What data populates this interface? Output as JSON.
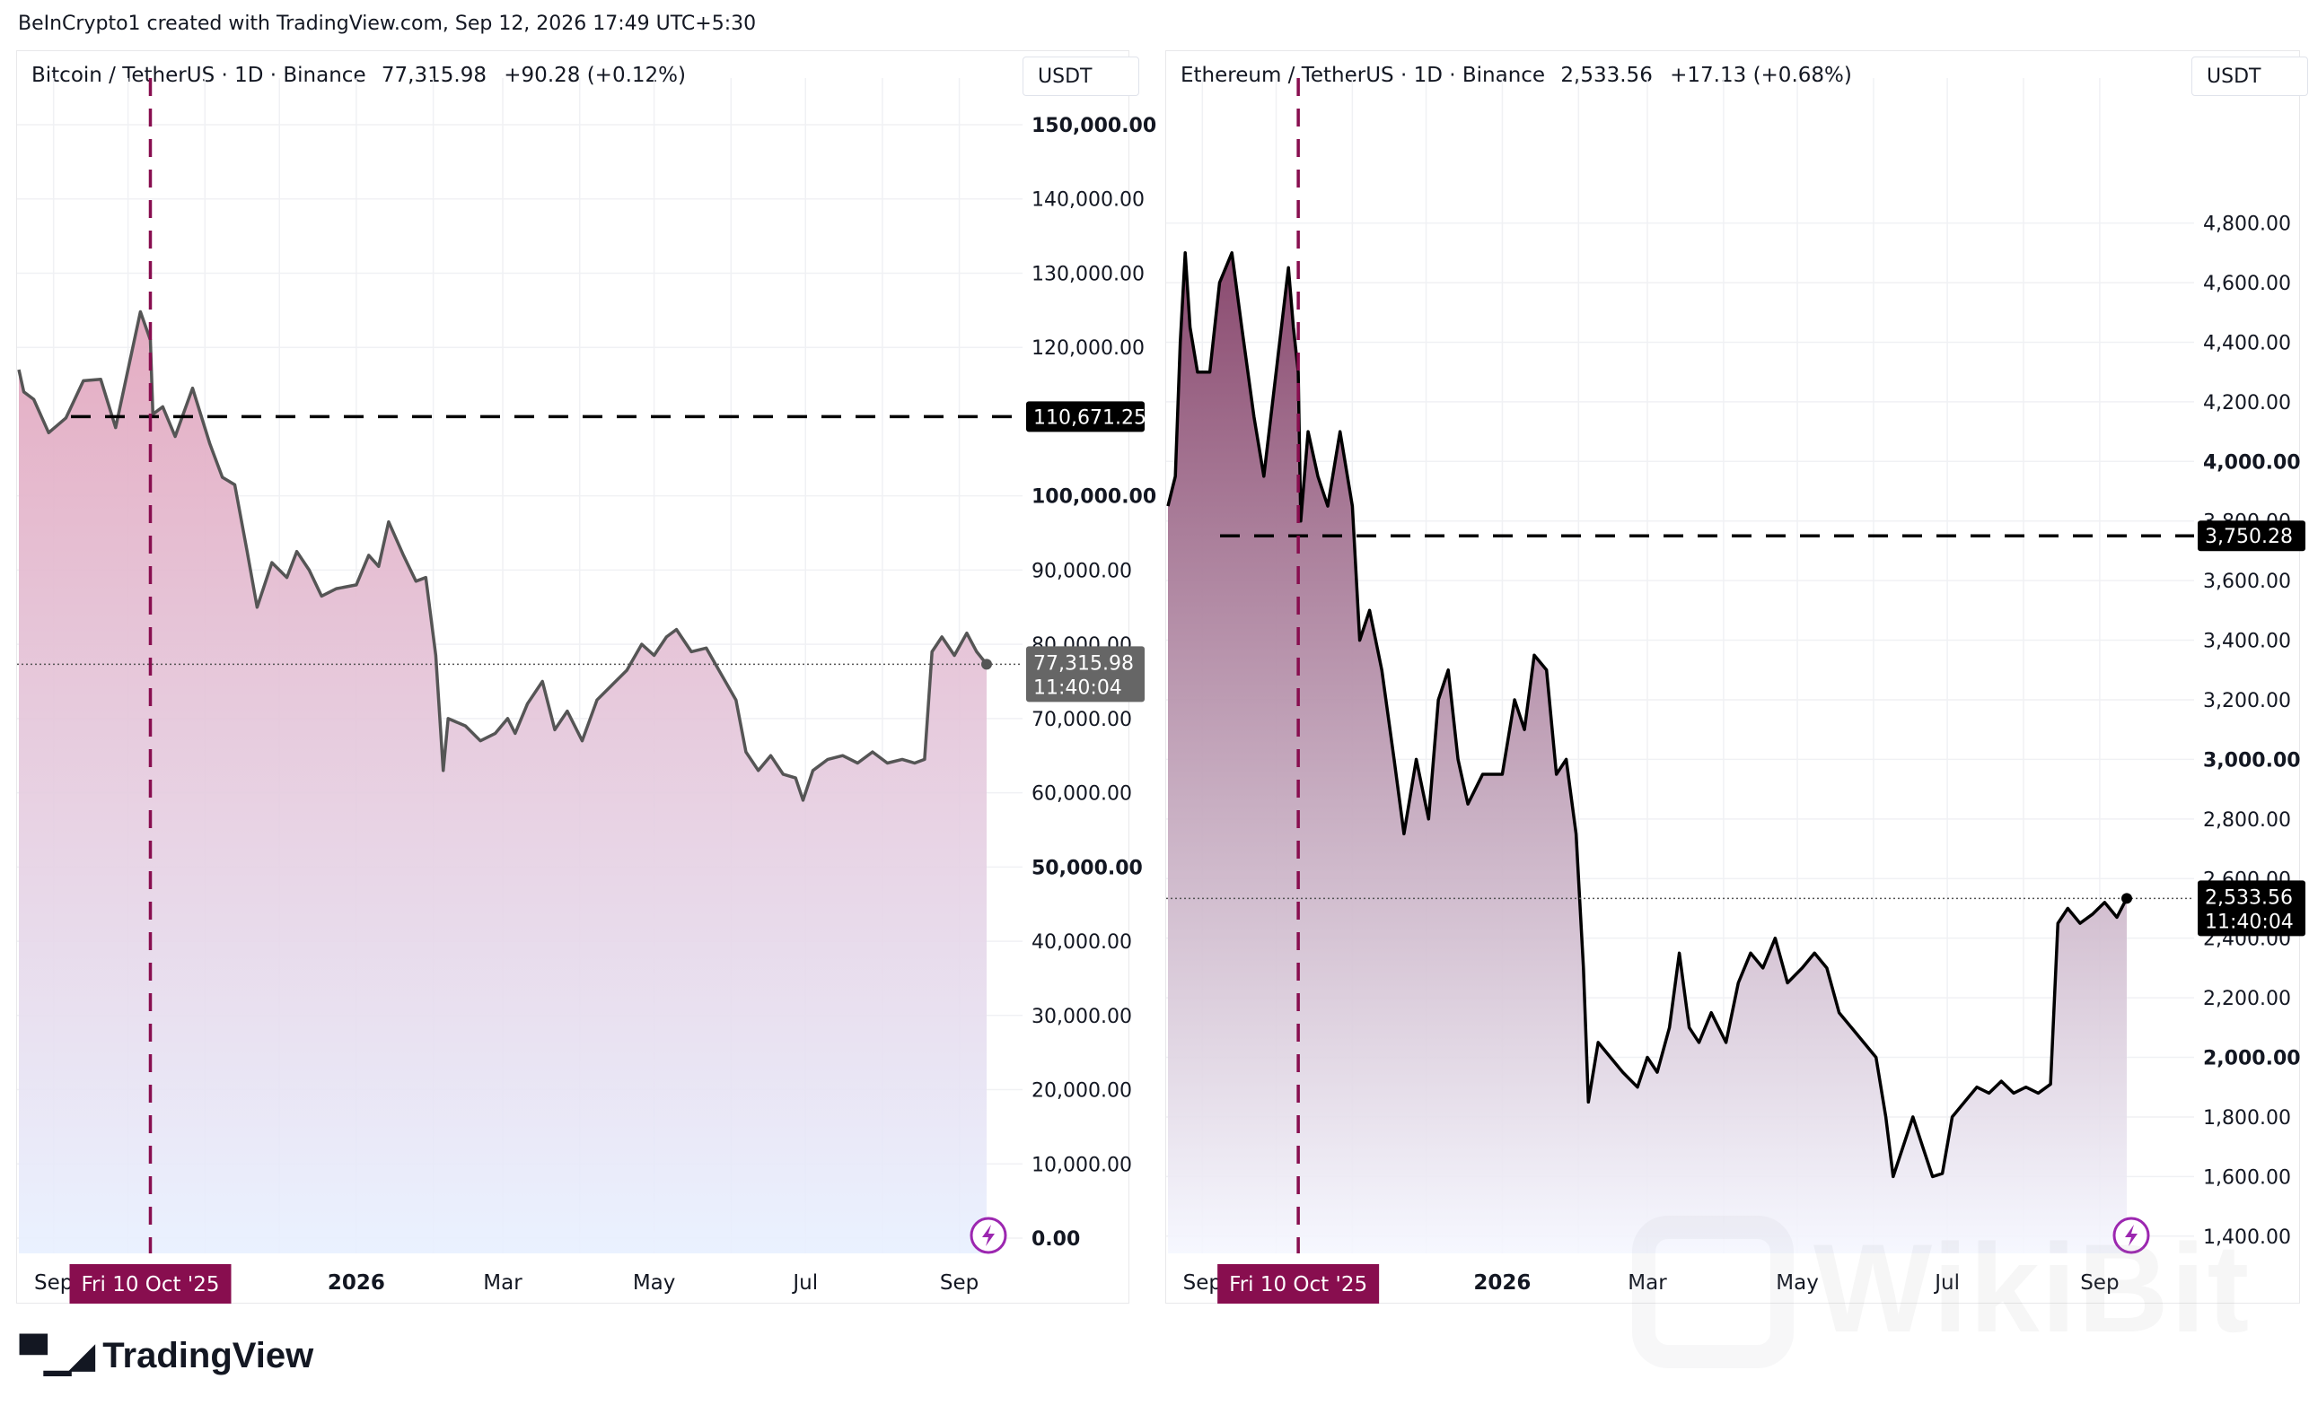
{
  "header": {
    "text": "BeInCrypto1 created with TradingView.com, Sep 12, 2026 17:49 UTC+5:30"
  },
  "footer": {
    "brand": "TradingView",
    "watermark": "WikiBit"
  },
  "colors": {
    "line": "#555555",
    "eth_line": "#000000",
    "positive": "#089981",
    "marker": "#880e4f",
    "label_bg": "#000000"
  },
  "chart_data": [
    {
      "type": "area",
      "symbol": "Bitcoin / TetherUS · 1D · Binance",
      "price": "77,315.98",
      "change": "+90.28 (+0.12%)",
      "currency": "USDT",
      "y_ticks": [
        "150,000.00",
        "140,000.00",
        "130,000.00",
        "120,000.00",
        "100,000.00",
        "90,000.00",
        "80,000.00",
        "70,000.00",
        "60,000.00",
        "50,000.00",
        "40,000.00",
        "30,000.00",
        "20,000.00",
        "10,000.00",
        "0.00"
      ],
      "bold_ticks": [
        "150,000.00",
        "100,000.00",
        "50,000.00",
        "0.00"
      ],
      "ylim": [
        0,
        150000
      ],
      "x_labels": [
        "Sep",
        "2026",
        "Mar",
        "May",
        "Jul",
        "Sep"
      ],
      "marker_label": "Fri 10 Oct '25",
      "level_value": 110671.25,
      "level_label": "110,671.25",
      "last_label": "77,315.98",
      "countdown": "11:40:04",
      "last_value": 77316,
      "series": [
        {
          "x": "2025-08-18",
          "y": 117000
        },
        {
          "x": "2025-08-20",
          "y": 114000
        },
        {
          "x": "2025-08-24",
          "y": 113000
        },
        {
          "x": "2025-08-30",
          "y": 108500
        },
        {
          "x": "2025-09-06",
          "y": 110500
        },
        {
          "x": "2025-09-13",
          "y": 115500
        },
        {
          "x": "2025-09-20",
          "y": 115700
        },
        {
          "x": "2025-09-26",
          "y": 109200
        },
        {
          "x": "2025-10-01",
          "y": 117000
        },
        {
          "x": "2025-10-06",
          "y": 124800
        },
        {
          "x": "2025-10-10",
          "y": 121000
        },
        {
          "x": "2025-10-11",
          "y": 111000
        },
        {
          "x": "2025-10-15",
          "y": 112000
        },
        {
          "x": "2025-10-20",
          "y": 108000
        },
        {
          "x": "2025-10-27",
          "y": 114500
        },
        {
          "x": "2025-11-03",
          "y": 107000
        },
        {
          "x": "2025-11-08",
          "y": 102500
        },
        {
          "x": "2025-11-13",
          "y": 101500
        },
        {
          "x": "2025-11-18",
          "y": 92500
        },
        {
          "x": "2025-11-22",
          "y": 85000
        },
        {
          "x": "2025-11-28",
          "y": 91000
        },
        {
          "x": "2025-12-04",
          "y": 89000
        },
        {
          "x": "2025-12-08",
          "y": 92500
        },
        {
          "x": "2025-12-13",
          "y": 90000
        },
        {
          "x": "2025-12-18",
          "y": 86500
        },
        {
          "x": "2025-12-24",
          "y": 87500
        },
        {
          "x": "2026-01-01",
          "y": 88000
        },
        {
          "x": "2026-01-06",
          "y": 92000
        },
        {
          "x": "2026-01-10",
          "y": 90500
        },
        {
          "x": "2026-01-14",
          "y": 96500
        },
        {
          "x": "2026-01-20",
          "y": 92000
        },
        {
          "x": "2026-01-25",
          "y": 88500
        },
        {
          "x": "2026-01-29",
          "y": 89000
        },
        {
          "x": "2026-02-02",
          "y": 78500
        },
        {
          "x": "2026-02-05",
          "y": 63000
        },
        {
          "x": "2026-02-07",
          "y": 70000
        },
        {
          "x": "2026-02-14",
          "y": 69000
        },
        {
          "x": "2026-02-20",
          "y": 67000
        },
        {
          "x": "2026-02-26",
          "y": 68000
        },
        {
          "x": "2026-03-03",
          "y": 70000
        },
        {
          "x": "2026-03-06",
          "y": 68000
        },
        {
          "x": "2026-03-11",
          "y": 72000
        },
        {
          "x": "2026-03-17",
          "y": 75000
        },
        {
          "x": "2026-03-22",
          "y": 68500
        },
        {
          "x": "2026-03-27",
          "y": 71000
        },
        {
          "x": "2026-04-02",
          "y": 67000
        },
        {
          "x": "2026-04-08",
          "y": 72500
        },
        {
          "x": "2026-04-14",
          "y": 74500
        },
        {
          "x": "2026-04-20",
          "y": 76500
        },
        {
          "x": "2026-04-26",
          "y": 80000
        },
        {
          "x": "2026-05-01",
          "y": 78500
        },
        {
          "x": "2026-05-06",
          "y": 81000
        },
        {
          "x": "2026-05-10",
          "y": 82000
        },
        {
          "x": "2026-05-16",
          "y": 79000
        },
        {
          "x": "2026-05-22",
          "y": 79500
        },
        {
          "x": "2026-05-28",
          "y": 76000
        },
        {
          "x": "2026-06-03",
          "y": 72500
        },
        {
          "x": "2026-06-07",
          "y": 65500
        },
        {
          "x": "2026-06-12",
          "y": 63000
        },
        {
          "x": "2026-06-17",
          "y": 65000
        },
        {
          "x": "2026-06-22",
          "y": 62500
        },
        {
          "x": "2026-06-27",
          "y": 62000
        },
        {
          "x": "2026-06-30",
          "y": 59000
        },
        {
          "x": "2026-07-04",
          "y": 63000
        },
        {
          "x": "2026-07-10",
          "y": 64500
        },
        {
          "x": "2026-07-16",
          "y": 65000
        },
        {
          "x": "2026-07-22",
          "y": 64000
        },
        {
          "x": "2026-07-28",
          "y": 65500
        },
        {
          "x": "2026-08-03",
          "y": 64000
        },
        {
          "x": "2026-08-09",
          "y": 64500
        },
        {
          "x": "2026-08-14",
          "y": 64000
        },
        {
          "x": "2026-08-18",
          "y": 64500
        },
        {
          "x": "2026-08-21",
          "y": 79000
        },
        {
          "x": "2026-08-25",
          "y": 81000
        },
        {
          "x": "2026-08-30",
          "y": 78500
        },
        {
          "x": "2026-09-04",
          "y": 81500
        },
        {
          "x": "2026-09-08",
          "y": 79000
        },
        {
          "x": "2026-09-12",
          "y": 77316
        }
      ],
      "gradient": [
        "#e3a8bf",
        "#e8f0ff"
      ]
    },
    {
      "type": "area",
      "symbol": "Ethereum / TetherUS · 1D · Binance",
      "price": "2,533.56",
      "change": "+17.13 (+0.68%)",
      "currency": "USDT",
      "y_ticks": [
        "4,800.00",
        "4,600.00",
        "4,400.00",
        "4,200.00",
        "4,000.00",
        "3,800.00",
        "3,600.00",
        "3,400.00",
        "3,200.00",
        "3,000.00",
        "2,800.00",
        "2,600.00",
        "2,400.00",
        "2,200.00",
        "2,000.00",
        "1,800.00",
        "1,600.00",
        "1,400.00"
      ],
      "bold_ticks": [
        "4,000.00",
        "3,000.00",
        "2,000.00"
      ],
      "ylim": [
        1300,
        5130
      ],
      "x_labels": [
        "Sep",
        "2026",
        "Mar",
        "May",
        "Jul",
        "Sep"
      ],
      "marker_label": "Fri 10 Oct '25",
      "level_value": 3750.28,
      "level_label": "3,750.28",
      "last_label": "2,533.56",
      "countdown": "11:40:04",
      "last_value": 2533.56,
      "series": [
        {
          "x": "2025-08-18",
          "y": 3850
        },
        {
          "x": "2025-08-21",
          "y": 3950
        },
        {
          "x": "2025-08-23",
          "y": 4400
        },
        {
          "x": "2025-08-25",
          "y": 4700
        },
        {
          "x": "2025-08-27",
          "y": 4450
        },
        {
          "x": "2025-08-30",
          "y": 4300
        },
        {
          "x": "2025-09-04",
          "y": 4300
        },
        {
          "x": "2025-09-08",
          "y": 4600
        },
        {
          "x": "2025-09-13",
          "y": 4700
        },
        {
          "x": "2025-09-17",
          "y": 4450
        },
        {
          "x": "2025-09-22",
          "y": 4150
        },
        {
          "x": "2025-09-26",
          "y": 3950
        },
        {
          "x": "2025-10-01",
          "y": 4300
        },
        {
          "x": "2025-10-06",
          "y": 4650
        },
        {
          "x": "2025-10-08",
          "y": 4450
        },
        {
          "x": "2025-10-10",
          "y": 4300
        },
        {
          "x": "2025-10-11",
          "y": 3800
        },
        {
          "x": "2025-10-14",
          "y": 4100
        },
        {
          "x": "2025-10-18",
          "y": 3950
        },
        {
          "x": "2025-10-22",
          "y": 3850
        },
        {
          "x": "2025-10-27",
          "y": 4100
        },
        {
          "x": "2025-11-01",
          "y": 3850
        },
        {
          "x": "2025-11-04",
          "y": 3400
        },
        {
          "x": "2025-11-08",
          "y": 3500
        },
        {
          "x": "2025-11-13",
          "y": 3300
        },
        {
          "x": "2025-11-18",
          "y": 3000
        },
        {
          "x": "2025-11-22",
          "y": 2750
        },
        {
          "x": "2025-11-27",
          "y": 3000
        },
        {
          "x": "2025-12-02",
          "y": 2800
        },
        {
          "x": "2025-12-06",
          "y": 3200
        },
        {
          "x": "2025-12-10",
          "y": 3300
        },
        {
          "x": "2025-12-14",
          "y": 3000
        },
        {
          "x": "2025-12-18",
          "y": 2850
        },
        {
          "x": "2025-12-24",
          "y": 2950
        },
        {
          "x": "2026-01-01",
          "y": 2950
        },
        {
          "x": "2026-01-06",
          "y": 3200
        },
        {
          "x": "2026-01-10",
          "y": 3100
        },
        {
          "x": "2026-01-14",
          "y": 3350
        },
        {
          "x": "2026-01-19",
          "y": 3300
        },
        {
          "x": "2026-01-23",
          "y": 2950
        },
        {
          "x": "2026-01-27",
          "y": 3000
        },
        {
          "x": "2026-01-31",
          "y": 2750
        },
        {
          "x": "2026-02-03",
          "y": 2300
        },
        {
          "x": "2026-02-05",
          "y": 1850
        },
        {
          "x": "2026-02-09",
          "y": 2050
        },
        {
          "x": "2026-02-14",
          "y": 2000
        },
        {
          "x": "2026-02-19",
          "y": 1950
        },
        {
          "x": "2026-02-25",
          "y": 1900
        },
        {
          "x": "2026-03-01",
          "y": 2000
        },
        {
          "x": "2026-03-05",
          "y": 1950
        },
        {
          "x": "2026-03-10",
          "y": 2100
        },
        {
          "x": "2026-03-14",
          "y": 2350
        },
        {
          "x": "2026-03-18",
          "y": 2100
        },
        {
          "x": "2026-03-22",
          "y": 2050
        },
        {
          "x": "2026-03-27",
          "y": 2150
        },
        {
          "x": "2026-04-02",
          "y": 2050
        },
        {
          "x": "2026-04-07",
          "y": 2250
        },
        {
          "x": "2026-04-12",
          "y": 2350
        },
        {
          "x": "2026-04-17",
          "y": 2300
        },
        {
          "x": "2026-04-22",
          "y": 2400
        },
        {
          "x": "2026-04-27",
          "y": 2250
        },
        {
          "x": "2026-05-03",
          "y": 2300
        },
        {
          "x": "2026-05-08",
          "y": 2350
        },
        {
          "x": "2026-05-13",
          "y": 2300
        },
        {
          "x": "2026-05-18",
          "y": 2150
        },
        {
          "x": "2026-05-23",
          "y": 2100
        },
        {
          "x": "2026-05-28",
          "y": 2050
        },
        {
          "x": "2026-06-02",
          "y": 2000
        },
        {
          "x": "2026-06-06",
          "y": 1800
        },
        {
          "x": "2026-06-09",
          "y": 1600
        },
        {
          "x": "2026-06-13",
          "y": 1700
        },
        {
          "x": "2026-06-17",
          "y": 1800
        },
        {
          "x": "2026-06-21",
          "y": 1700
        },
        {
          "x": "2026-06-25",
          "y": 1600
        },
        {
          "x": "2026-06-29",
          "y": 1610
        },
        {
          "x": "2026-07-03",
          "y": 1800
        },
        {
          "x": "2026-07-08",
          "y": 1850
        },
        {
          "x": "2026-07-13",
          "y": 1900
        },
        {
          "x": "2026-07-18",
          "y": 1880
        },
        {
          "x": "2026-07-23",
          "y": 1920
        },
        {
          "x": "2026-07-28",
          "y": 1880
        },
        {
          "x": "2026-08-02",
          "y": 1900
        },
        {
          "x": "2026-08-07",
          "y": 1880
        },
        {
          "x": "2026-08-12",
          "y": 1910
        },
        {
          "x": "2026-08-15",
          "y": 2450
        },
        {
          "x": "2026-08-19",
          "y": 2500
        },
        {
          "x": "2026-08-24",
          "y": 2450
        },
        {
          "x": "2026-08-29",
          "y": 2480
        },
        {
          "x": "2026-09-03",
          "y": 2520
        },
        {
          "x": "2026-09-08",
          "y": 2470
        },
        {
          "x": "2026-09-12",
          "y": 2533.56
        }
      ],
      "gradient": [
        "#8a4a6f",
        "#f5f7ff"
      ]
    }
  ]
}
